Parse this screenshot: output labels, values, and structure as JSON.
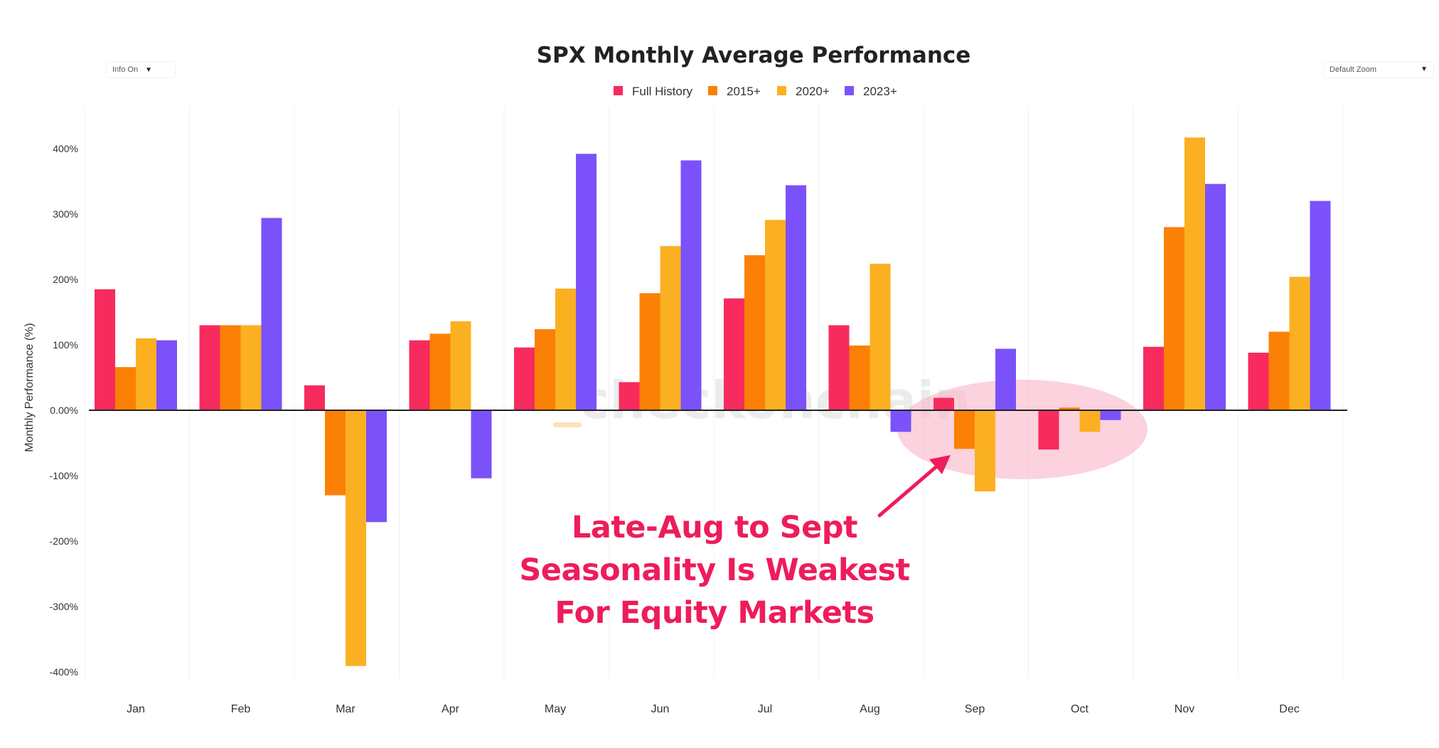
{
  "controls": {
    "info_label": "Info On",
    "zoom_label": "Default Zoom"
  },
  "watermark": "checkonchain",
  "annotation": {
    "lines": [
      "Late-Aug to Sept",
      "Seasonality Is Weakest",
      "For Equity Markets"
    ],
    "color": "#ee1c5a",
    "highlight_color": "#f9b6c8"
  },
  "chart_data": {
    "type": "bar",
    "title": "SPX Monthly Average Performance",
    "ylabel": "Monthly Performance (%)",
    "ylim": [
      -4.3,
      4.3
    ],
    "yticks": [
      4,
      3,
      2,
      1,
      0,
      -1,
      -2,
      -3,
      -4
    ],
    "ytick_labels": [
      "400%",
      "300%",
      "200%",
      "100%",
      "0.00%",
      "-100%",
      "-200%",
      "-300%",
      "-400%"
    ],
    "categories": [
      "Jan",
      "Feb",
      "Mar",
      "Apr",
      "May",
      "Jun",
      "Jul",
      "Aug",
      "Sep",
      "Oct",
      "Nov",
      "Dec"
    ],
    "legend_position": "top-center",
    "grid": "vertical",
    "series": [
      {
        "name": "Full History",
        "color": "#f72b5e",
        "values": [
          1.85,
          1.3,
          0.38,
          1.07,
          0.96,
          0.43,
          1.71,
          1.3,
          0.19,
          -0.6,
          0.97,
          0.88
        ]
      },
      {
        "name": "2015+",
        "color": "#fb8006",
        "values": [
          0.66,
          1.3,
          -1.3,
          1.17,
          1.24,
          1.79,
          2.37,
          0.99,
          -0.59,
          0.04,
          2.8,
          1.2
        ]
      },
      {
        "name": "2020+",
        "color": "#fbb022",
        "values": [
          1.1,
          1.3,
          -3.91,
          1.36,
          1.86,
          2.51,
          2.91,
          2.24,
          -1.24,
          -0.33,
          4.17,
          2.04
        ]
      },
      {
        "name": "2023+",
        "color": "#7b52fa",
        "values": [
          1.07,
          2.94,
          -1.71,
          -1.04,
          3.92,
          3.82,
          3.44,
          -0.33,
          0.94,
          -0.15,
          3.46,
          3.2
        ]
      }
    ]
  }
}
